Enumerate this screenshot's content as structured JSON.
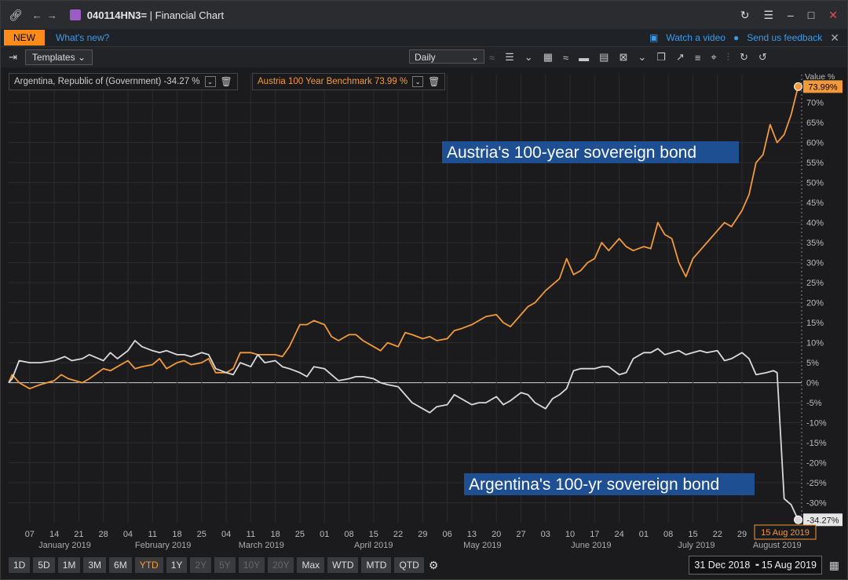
{
  "window": {
    "title_code": "040114HN3=",
    "title_suffix": " | Financial Chart"
  },
  "notice": {
    "badge": "NEW",
    "whats_new": "What's new?",
    "watch_video": "Watch a video",
    "feedback": "Send us feedback"
  },
  "toolbar": {
    "templates_label": "Templates",
    "interval": "Daily"
  },
  "legend": {
    "argentina": "Argentina, Republic of (Government) -34.27 %",
    "austria": "Austria 100 Year Benchmark 73.99 %"
  },
  "axis": {
    "value_label": "Value %",
    "value_sub": "None"
  },
  "annotations": {
    "austria": "Austria's 100-year sovereign bond",
    "argentina": "Argentina's 100-yr sovereign bond"
  },
  "colors": {
    "austria": "#f29a3a",
    "argentina": "#d9d9d9",
    "annotation_bg": "#1f4f93",
    "grid": "#2c2c2f",
    "zero_line": "#bdbdbd"
  },
  "bottom": {
    "ranges": [
      {
        "label": "1D",
        "state": "normal"
      },
      {
        "label": "5D",
        "state": "normal"
      },
      {
        "label": "1M",
        "state": "normal"
      },
      {
        "label": "3M",
        "state": "normal"
      },
      {
        "label": "6M",
        "state": "normal"
      },
      {
        "label": "YTD",
        "state": "active"
      },
      {
        "label": "1Y",
        "state": "normal"
      },
      {
        "label": "2Y",
        "state": "dis"
      },
      {
        "label": "5Y",
        "state": "dis"
      },
      {
        "label": "10Y",
        "state": "dis"
      },
      {
        "label": "20Y",
        "state": "dis"
      },
      {
        "label": "Max",
        "state": "normal"
      },
      {
        "label": "WTD",
        "state": "normal"
      },
      {
        "label": "MTD",
        "state": "normal"
      },
      {
        "label": "QTD",
        "state": "normal"
      }
    ],
    "date_range": "31 Dec 2018  ╺  15 Aug 2019"
  },
  "chart_data": {
    "type": "line",
    "title": "",
    "xlabel": "",
    "ylabel": "Value %",
    "ylim": [
      -35,
      77
    ],
    "y_ticks": [
      -30,
      -25,
      -20,
      -15,
      -10,
      -5,
      0,
      5,
      10,
      15,
      20,
      25,
      30,
      35,
      40,
      45,
      50,
      55,
      60,
      65,
      70
    ],
    "y_tick_labels": [
      "-30%",
      "-25%",
      "-20%",
      "-15%",
      "-10%",
      "-5%",
      "0%",
      "5%",
      "10%",
      "15%",
      "20%",
      "25%",
      "30%",
      "35%",
      "40%",
      "45%",
      "50%",
      "55%",
      "60%",
      "65%",
      "70%"
    ],
    "x_range": [
      "2019-01-01",
      "2019-08-15"
    ],
    "x_ticks": [
      {
        "date": "2019-01-07",
        "label": "07"
      },
      {
        "date": "2019-01-14",
        "label": "14"
      },
      {
        "date": "2019-01-21",
        "label": "21"
      },
      {
        "date": "2019-01-28",
        "label": "28"
      },
      {
        "date": "2019-02-04",
        "label": "04"
      },
      {
        "date": "2019-02-11",
        "label": "11"
      },
      {
        "date": "2019-02-18",
        "label": "18"
      },
      {
        "date": "2019-02-25",
        "label": "25"
      },
      {
        "date": "2019-03-04",
        "label": "04"
      },
      {
        "date": "2019-03-11",
        "label": "11"
      },
      {
        "date": "2019-03-18",
        "label": "18"
      },
      {
        "date": "2019-03-25",
        "label": "25"
      },
      {
        "date": "2019-04-01",
        "label": "01"
      },
      {
        "date": "2019-04-08",
        "label": "08"
      },
      {
        "date": "2019-04-15",
        "label": "15"
      },
      {
        "date": "2019-04-22",
        "label": "22"
      },
      {
        "date": "2019-04-29",
        "label": "29"
      },
      {
        "date": "2019-05-06",
        "label": "06"
      },
      {
        "date": "2019-05-13",
        "label": "13"
      },
      {
        "date": "2019-05-20",
        "label": "20"
      },
      {
        "date": "2019-05-27",
        "label": "27"
      },
      {
        "date": "2019-06-03",
        "label": "03"
      },
      {
        "date": "2019-06-10",
        "label": "10"
      },
      {
        "date": "2019-06-17",
        "label": "17"
      },
      {
        "date": "2019-06-24",
        "label": "24"
      },
      {
        "date": "2019-07-01",
        "label": "01"
      },
      {
        "date": "2019-07-08",
        "label": "08"
      },
      {
        "date": "2019-07-15",
        "label": "15"
      },
      {
        "date": "2019-07-22",
        "label": "22"
      },
      {
        "date": "2019-07-29",
        "label": "29"
      }
    ],
    "x_months": [
      {
        "date": "2019-01-17",
        "label": "January 2019"
      },
      {
        "date": "2019-02-14",
        "label": "February 2019"
      },
      {
        "date": "2019-03-14",
        "label": "March 2019"
      },
      {
        "date": "2019-04-15",
        "label": "April 2019"
      },
      {
        "date": "2019-05-16",
        "label": "May 2019"
      },
      {
        "date": "2019-06-16",
        "label": "June 2019"
      },
      {
        "date": "2019-07-16",
        "label": "July 2019"
      },
      {
        "date": "2019-08-08",
        "label": "August 2019"
      }
    ],
    "cursor_date_label": "15 Aug 2019",
    "series": [
      {
        "name": "Austria 100 Year Benchmark",
        "last_label": "73.99%",
        "points": [
          [
            "2019-01-01",
            0
          ],
          [
            "2019-01-02",
            2
          ],
          [
            "2019-01-04",
            0
          ],
          [
            "2019-01-07",
            -1.5
          ],
          [
            "2019-01-10",
            -0.5
          ],
          [
            "2019-01-14",
            0.5
          ],
          [
            "2019-01-16",
            2
          ],
          [
            "2019-01-18",
            1
          ],
          [
            "2019-01-22",
            0
          ],
          [
            "2019-01-24",
            1
          ],
          [
            "2019-01-28",
            3.5
          ],
          [
            "2019-01-30",
            3
          ],
          [
            "2019-02-01",
            4
          ],
          [
            "2019-02-04",
            5.5
          ],
          [
            "2019-02-06",
            3.5
          ],
          [
            "2019-02-08",
            4
          ],
          [
            "2019-02-11",
            4.5
          ],
          [
            "2019-02-13",
            6
          ],
          [
            "2019-02-15",
            3.5
          ],
          [
            "2019-02-18",
            5
          ],
          [
            "2019-02-20",
            5.5
          ],
          [
            "2019-02-22",
            4.5
          ],
          [
            "2019-02-25",
            5
          ],
          [
            "2019-02-27",
            6
          ],
          [
            "2019-03-01",
            2.5
          ],
          [
            "2019-03-04",
            2.5
          ],
          [
            "2019-03-06",
            3.5
          ],
          [
            "2019-03-08",
            7.5
          ],
          [
            "2019-03-11",
            7.5
          ],
          [
            "2019-03-13",
            7
          ],
          [
            "2019-03-15",
            7
          ],
          [
            "2019-03-18",
            7
          ],
          [
            "2019-03-20",
            6.5
          ],
          [
            "2019-03-22",
            9
          ],
          [
            "2019-03-25",
            14.5
          ],
          [
            "2019-03-27",
            14.5
          ],
          [
            "2019-03-29",
            15.5
          ],
          [
            "2019-04-01",
            14.5
          ],
          [
            "2019-04-03",
            11.5
          ],
          [
            "2019-04-05",
            10.5
          ],
          [
            "2019-04-08",
            12
          ],
          [
            "2019-04-10",
            12
          ],
          [
            "2019-04-12",
            10.5
          ],
          [
            "2019-04-15",
            9
          ],
          [
            "2019-04-17",
            8
          ],
          [
            "2019-04-19",
            10
          ],
          [
            "2019-04-22",
            9
          ],
          [
            "2019-04-24",
            12.5
          ],
          [
            "2019-04-26",
            12
          ],
          [
            "2019-04-29",
            11
          ],
          [
            "2019-05-01",
            11.5
          ],
          [
            "2019-05-03",
            10.5
          ],
          [
            "2019-05-06",
            11
          ],
          [
            "2019-05-08",
            13
          ],
          [
            "2019-05-10",
            13.5
          ],
          [
            "2019-05-13",
            14.5
          ],
          [
            "2019-05-15",
            15.5
          ],
          [
            "2019-05-17",
            16.5
          ],
          [
            "2019-05-20",
            17
          ],
          [
            "2019-05-22",
            15
          ],
          [
            "2019-05-24",
            14
          ],
          [
            "2019-05-27",
            17
          ],
          [
            "2019-05-29",
            19
          ],
          [
            "2019-05-31",
            20
          ],
          [
            "2019-06-03",
            23
          ],
          [
            "2019-06-05",
            24.5
          ],
          [
            "2019-06-07",
            26
          ],
          [
            "2019-06-09",
            31
          ],
          [
            "2019-06-11",
            27
          ],
          [
            "2019-06-13",
            28
          ],
          [
            "2019-06-15",
            30
          ],
          [
            "2019-06-17",
            31
          ],
          [
            "2019-06-19",
            35
          ],
          [
            "2019-06-21",
            33
          ],
          [
            "2019-06-24",
            36
          ],
          [
            "2019-06-26",
            34
          ],
          [
            "2019-06-28",
            33
          ],
          [
            "2019-07-01",
            34
          ],
          [
            "2019-07-03",
            33.5
          ],
          [
            "2019-07-05",
            40
          ],
          [
            "2019-07-07",
            37
          ],
          [
            "2019-07-09",
            36
          ],
          [
            "2019-07-11",
            30
          ],
          [
            "2019-07-13",
            26.5
          ],
          [
            "2019-07-15",
            31
          ],
          [
            "2019-07-17",
            33
          ],
          [
            "2019-07-19",
            35
          ],
          [
            "2019-07-22",
            38
          ],
          [
            "2019-07-24",
            40
          ],
          [
            "2019-07-26",
            39
          ],
          [
            "2019-07-29",
            43
          ],
          [
            "2019-07-31",
            47
          ],
          [
            "2019-08-02",
            55
          ],
          [
            "2019-08-04",
            57
          ],
          [
            "2019-08-06",
            64.5
          ],
          [
            "2019-08-08",
            60
          ],
          [
            "2019-08-10",
            62
          ],
          [
            "2019-08-12",
            67
          ],
          [
            "2019-08-14",
            73.99
          ]
        ]
      },
      {
        "name": "Argentina, Republic of (Government)",
        "last_label": "-34.27%",
        "points": [
          [
            "2019-01-01",
            0
          ],
          [
            "2019-01-02",
            1
          ],
          [
            "2019-01-04",
            5.5
          ],
          [
            "2019-01-07",
            5
          ],
          [
            "2019-01-10",
            5
          ],
          [
            "2019-01-14",
            5.5
          ],
          [
            "2019-01-17",
            6.5
          ],
          [
            "2019-01-19",
            5.5
          ],
          [
            "2019-01-22",
            6
          ],
          [
            "2019-01-24",
            7
          ],
          [
            "2019-01-28",
            5.5
          ],
          [
            "2019-01-30",
            7.5
          ],
          [
            "2019-02-01",
            6
          ],
          [
            "2019-02-04",
            8
          ],
          [
            "2019-02-06",
            10.5
          ],
          [
            "2019-02-08",
            9
          ],
          [
            "2019-02-11",
            8
          ],
          [
            "2019-02-13",
            7.5
          ],
          [
            "2019-02-15",
            8
          ],
          [
            "2019-02-18",
            7
          ],
          [
            "2019-02-20",
            7
          ],
          [
            "2019-02-22",
            6.5
          ],
          [
            "2019-02-25",
            7.5
          ],
          [
            "2019-02-27",
            7
          ],
          [
            "2019-03-01",
            3.5
          ],
          [
            "2019-03-04",
            2.5
          ],
          [
            "2019-03-06",
            2
          ],
          [
            "2019-03-08",
            5
          ],
          [
            "2019-03-11",
            4
          ],
          [
            "2019-03-13",
            7
          ],
          [
            "2019-03-15",
            5
          ],
          [
            "2019-03-18",
            5.5
          ],
          [
            "2019-03-20",
            4
          ],
          [
            "2019-03-22",
            3.5
          ],
          [
            "2019-03-25",
            2.5
          ],
          [
            "2019-03-27",
            1.5
          ],
          [
            "2019-03-29",
            4
          ],
          [
            "2019-04-01",
            3.5
          ],
          [
            "2019-04-03",
            2
          ],
          [
            "2019-04-05",
            0.5
          ],
          [
            "2019-04-08",
            1
          ],
          [
            "2019-04-10",
            1.5
          ],
          [
            "2019-04-12",
            1.5
          ],
          [
            "2019-04-15",
            1
          ],
          [
            "2019-04-17",
            0
          ],
          [
            "2019-04-19",
            -0.5
          ],
          [
            "2019-04-22",
            -1
          ],
          [
            "2019-04-24",
            -3
          ],
          [
            "2019-04-26",
            -5
          ],
          [
            "2019-04-29",
            -6.5
          ],
          [
            "2019-05-01",
            -7.5
          ],
          [
            "2019-05-03",
            -6
          ],
          [
            "2019-05-06",
            -5.5
          ],
          [
            "2019-05-08",
            -3
          ],
          [
            "2019-05-10",
            -4
          ],
          [
            "2019-05-13",
            -5.5
          ],
          [
            "2019-05-15",
            -5
          ],
          [
            "2019-05-17",
            -5
          ],
          [
            "2019-05-20",
            -3.5
          ],
          [
            "2019-05-22",
            -5.5
          ],
          [
            "2019-05-24",
            -4.5
          ],
          [
            "2019-05-27",
            -2.5
          ],
          [
            "2019-05-29",
            -3
          ],
          [
            "2019-05-31",
            -5
          ],
          [
            "2019-06-03",
            -6.5
          ],
          [
            "2019-06-05",
            -4
          ],
          [
            "2019-06-07",
            -3
          ],
          [
            "2019-06-09",
            -1.5
          ],
          [
            "2019-06-11",
            3
          ],
          [
            "2019-06-13",
            3.5
          ],
          [
            "2019-06-15",
            3.5
          ],
          [
            "2019-06-17",
            3.5
          ],
          [
            "2019-06-19",
            4
          ],
          [
            "2019-06-21",
            4
          ],
          [
            "2019-06-24",
            2
          ],
          [
            "2019-06-26",
            2.5
          ],
          [
            "2019-06-28",
            6
          ],
          [
            "2019-07-01",
            7.5
          ],
          [
            "2019-07-03",
            7.5
          ],
          [
            "2019-07-05",
            8.5
          ],
          [
            "2019-07-07",
            7
          ],
          [
            "2019-07-09",
            7.5
          ],
          [
            "2019-07-11",
            8
          ],
          [
            "2019-07-13",
            7
          ],
          [
            "2019-07-15",
            7.5
          ],
          [
            "2019-07-17",
            8
          ],
          [
            "2019-07-19",
            7.5
          ],
          [
            "2019-07-22",
            8
          ],
          [
            "2019-07-24",
            5.5
          ],
          [
            "2019-07-26",
            6
          ],
          [
            "2019-07-29",
            7.5
          ],
          [
            "2019-07-31",
            6
          ],
          [
            "2019-08-02",
            2
          ],
          [
            "2019-08-05",
            2.5
          ],
          [
            "2019-08-07",
            3
          ],
          [
            "2019-08-08",
            2.5
          ],
          [
            "2019-08-10",
            -29
          ],
          [
            "2019-08-12",
            -30.5
          ],
          [
            "2019-08-14",
            -34.27
          ]
        ]
      }
    ]
  }
}
